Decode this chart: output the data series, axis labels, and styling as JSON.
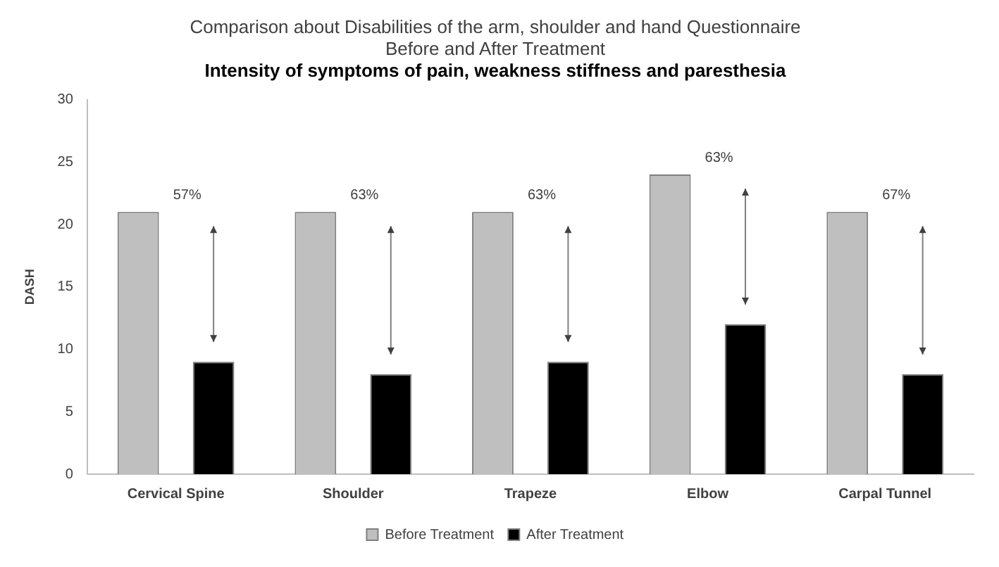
{
  "chart_data": {
    "type": "bar",
    "title": "Comparison about Disabilities of the arm, shoulder and hand Questionnaire\nBefore and After Treatment",
    "subtitle": "Intensity of symptoms of pain, weakness stiffness and paresthesia",
    "ylabel": "DASH",
    "categories": [
      "Cervical Spine",
      "Shoulder",
      "Trapeze",
      "Elbow",
      "Carpal Tunnel"
    ],
    "series": [
      {
        "name": "Before Treatment",
        "color": "#bfbfbf",
        "values": [
          21,
          21,
          21,
          24,
          21
        ]
      },
      {
        "name": "After Treatment",
        "color": "#000000",
        "values": [
          9,
          8,
          9,
          12,
          8
        ]
      }
    ],
    "ylim": [
      0,
      30
    ],
    "yticks": [
      0,
      5,
      10,
      15,
      20,
      25,
      30
    ],
    "grid": false,
    "legend": "bottom",
    "annotations": [
      "57%",
      "63%",
      "63%",
      "63%",
      "67%"
    ]
  }
}
